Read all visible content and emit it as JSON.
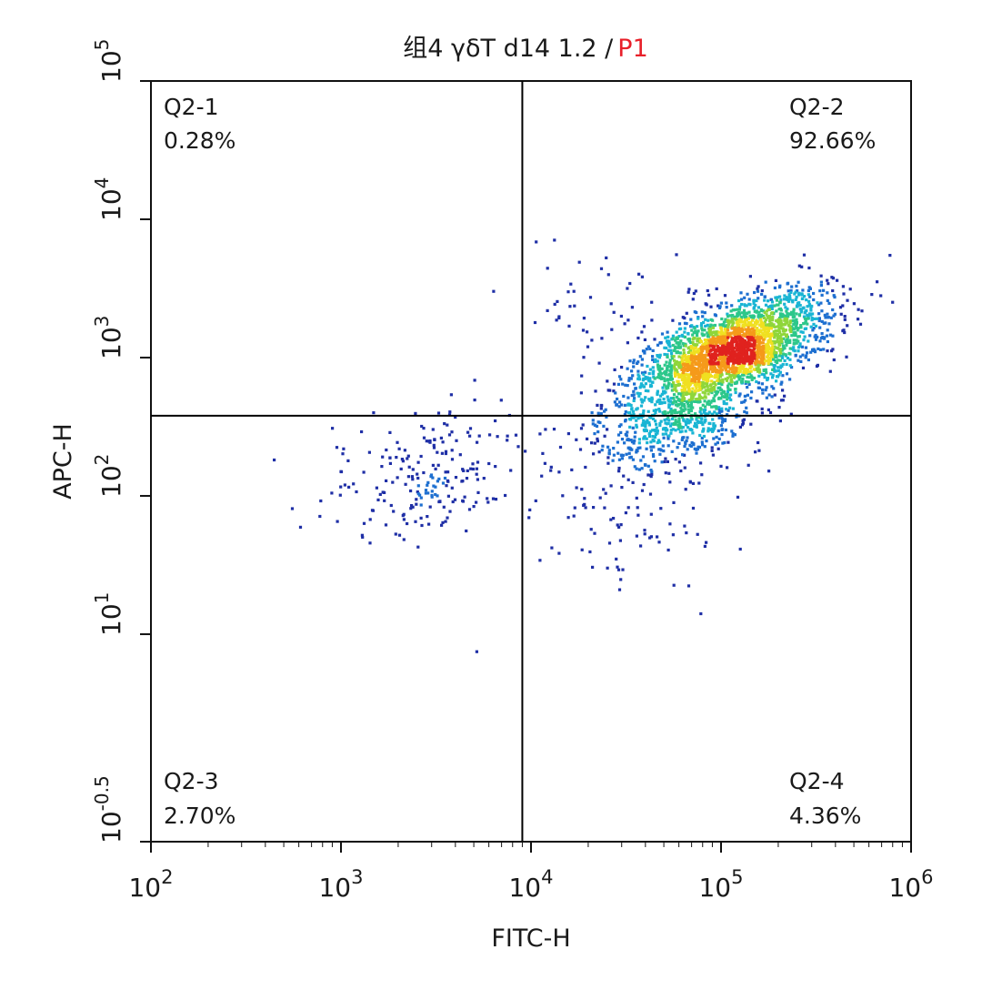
{
  "chart_data": {
    "type": "scatter",
    "title_prefix": "组4 γδT d14 1.2 /",
    "title_gate": "P1",
    "title_gate_color": "#e8202a",
    "xlabel": "FITC-H",
    "ylabel": "APC-H",
    "x_scale": "log",
    "y_scale": "log",
    "xlim": [
      100,
      1000000
    ],
    "ylim": [
      0.316,
      100000
    ],
    "x_ticks": [
      {
        "value": 100,
        "base": "10",
        "exp": "2"
      },
      {
        "value": 1000,
        "base": "10",
        "exp": "3"
      },
      {
        "value": 10000,
        "base": "10",
        "exp": "4"
      },
      {
        "value": 100000,
        "base": "10",
        "exp": "5"
      },
      {
        "value": 1000000,
        "base": "10",
        "exp": "6"
      }
    ],
    "y_ticks": [
      {
        "value": 0.316,
        "base": "10",
        "exp": "-0.5"
      },
      {
        "value": 10,
        "base": "10",
        "exp": "1"
      },
      {
        "value": 100,
        "base": "10",
        "exp": "2"
      },
      {
        "value": 1000,
        "base": "10",
        "exp": "3"
      },
      {
        "value": 10000,
        "base": "10",
        "exp": "4"
      },
      {
        "value": 100000,
        "base": "10",
        "exp": "5"
      }
    ],
    "gate": {
      "x": 9000,
      "y": 380
    },
    "quadrants": [
      {
        "name": "Q2-1",
        "percent": "0.28%",
        "corner": "top-left"
      },
      {
        "name": "Q2-2",
        "percent": "92.66%",
        "corner": "top-right"
      },
      {
        "name": "Q2-3",
        "percent": "2.70%",
        "corner": "bottom-left"
      },
      {
        "name": "Q2-4",
        "percent": "4.36%",
        "corner": "bottom-right"
      }
    ],
    "clusters": [
      {
        "description": "main double-positive population",
        "center": [
          110000,
          1100
        ],
        "count": 2600,
        "spread_log": [
          0.24,
          0.2
        ],
        "correlation": 0.6
      },
      {
        "description": "FITC+ APC-low shoulder",
        "center": [
          60000,
          330
        ],
        "count": 500,
        "spread_log": [
          0.22,
          0.16
        ],
        "correlation": 0.3
      },
      {
        "description": "double-negative population",
        "center": [
          3000,
          150
        ],
        "count": 220,
        "spread_log": [
          0.28,
          0.25
        ],
        "correlation": 0.1
      },
      {
        "description": "sparse FITC+ APC-low events",
        "center": [
          30000,
          80
        ],
        "count": 110,
        "spread_log": [
          0.3,
          0.3
        ],
        "correlation": 0.0
      },
      {
        "description": "sparse APC+ events",
        "center": [
          20000,
          2500
        ],
        "count": 45,
        "spread_log": [
          0.2,
          0.18
        ],
        "correlation": 0.0
      }
    ],
    "density_colors": [
      "#1f2fa6",
      "#1d6fd0",
      "#19b5d4",
      "#2cc78a",
      "#8fd63a",
      "#f0e020",
      "#f59a1a",
      "#e0221e"
    ],
    "grid": false,
    "legend": "none"
  }
}
